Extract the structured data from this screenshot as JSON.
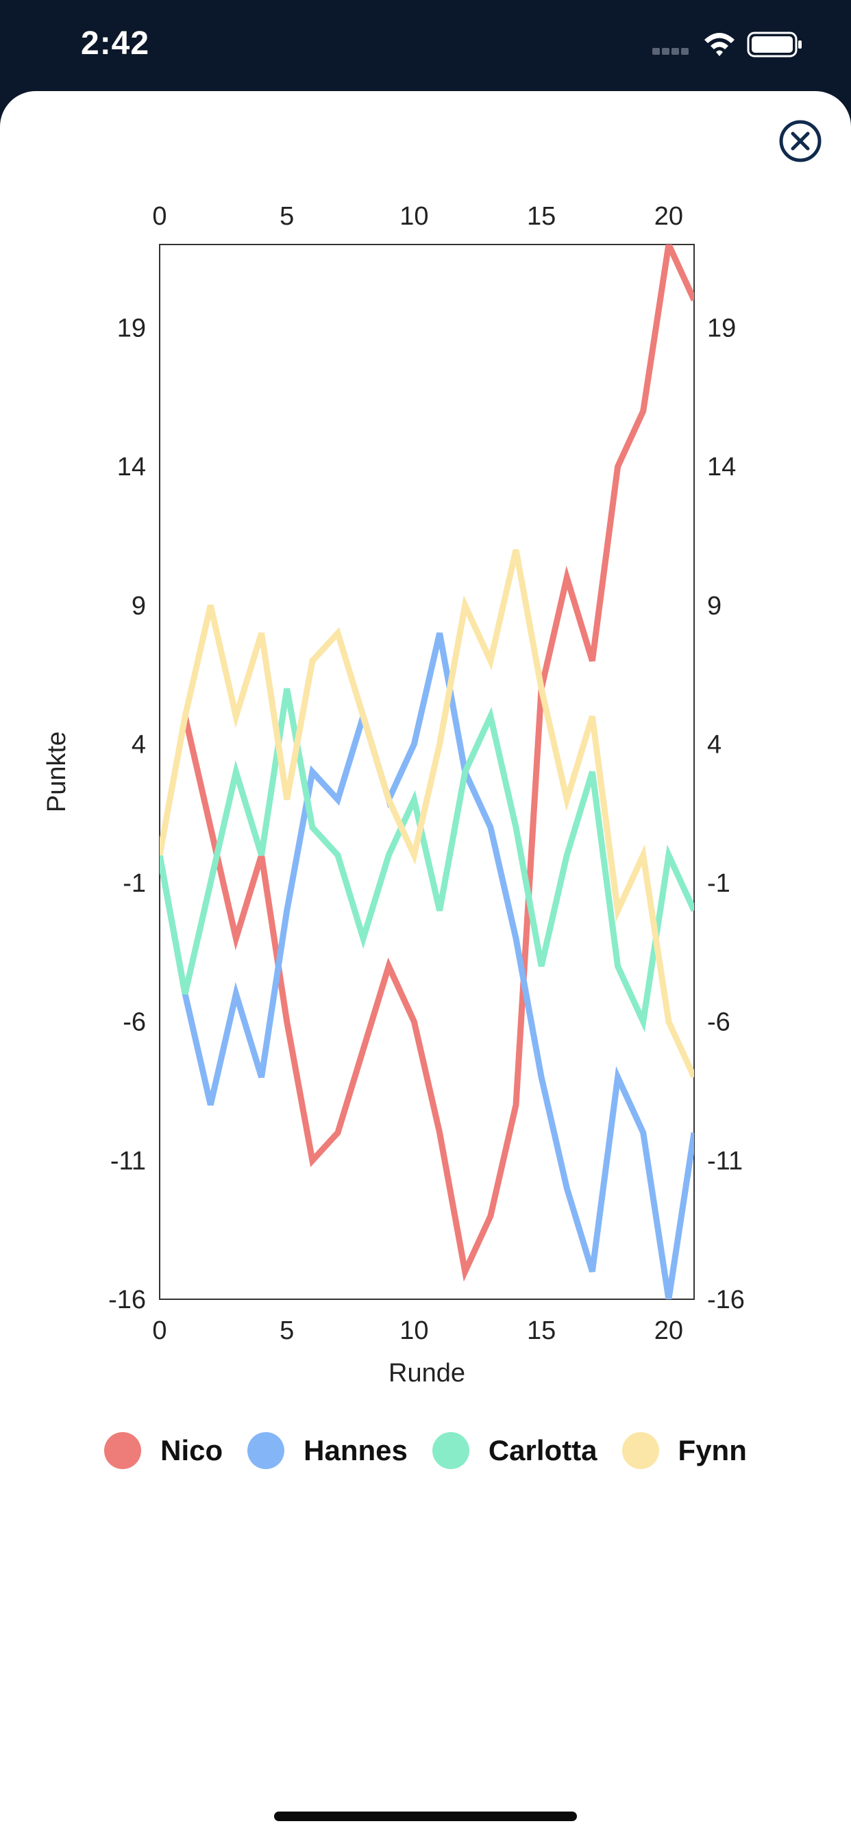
{
  "status_bar": {
    "time": "2:42"
  },
  "close_icon": "close-circle-x-icon",
  "chart_data": {
    "type": "line",
    "title": "",
    "xlabel": "Runde",
    "ylabel": "Punkte",
    "xlim": [
      0,
      21
    ],
    "ylim": [
      -16,
      22
    ],
    "x_ticks": [
      0,
      5,
      10,
      15,
      20
    ],
    "y_ticks": [
      -16,
      -11,
      -6,
      -1,
      4,
      9,
      14,
      19
    ],
    "legend_position": "bottom",
    "grid": false,
    "series": [
      {
        "name": "Nico",
        "color": "#ee7c78",
        "points": [
          [
            1,
            5
          ],
          [
            2,
            1
          ],
          [
            3,
            -3
          ],
          [
            4,
            0
          ],
          [
            5,
            -6
          ],
          [
            6,
            -11
          ],
          [
            7,
            -10
          ],
          [
            8,
            -7
          ],
          [
            9,
            -4
          ],
          [
            10,
            -6
          ],
          [
            11,
            -10
          ],
          [
            12,
            -15
          ],
          [
            13,
            -13
          ],
          [
            14,
            -9
          ],
          [
            15,
            6
          ],
          [
            16,
            10
          ],
          [
            17,
            7
          ],
          [
            18,
            14
          ],
          [
            19,
            16
          ],
          [
            20,
            22
          ],
          [
            21,
            20
          ]
        ]
      },
      {
        "name": "Hannes",
        "color": "#84b6f7",
        "points": [
          [
            0,
            0
          ],
          [
            1,
            -5
          ],
          [
            2,
            -9
          ],
          [
            3,
            -5
          ],
          [
            4,
            -8
          ],
          [
            5,
            -2
          ],
          [
            6,
            3
          ],
          [
            7,
            2
          ],
          [
            8,
            5
          ],
          [
            9,
            2
          ],
          [
            10,
            4
          ],
          [
            11,
            8
          ],
          [
            12,
            3
          ],
          [
            13,
            1
          ],
          [
            14,
            -3
          ],
          [
            15,
            -8
          ],
          [
            16,
            -12
          ],
          [
            17,
            -15
          ],
          [
            18,
            -8
          ],
          [
            19,
            -10
          ],
          [
            20,
            -16
          ],
          [
            21,
            -10
          ]
        ]
      },
      {
        "name": "Carlotta",
        "color": "#88ecc8",
        "points": [
          [
            0,
            0
          ],
          [
            1,
            -5
          ],
          [
            2,
            -1
          ],
          [
            3,
            3
          ],
          [
            4,
            0
          ],
          [
            5,
            6
          ],
          [
            6,
            1
          ],
          [
            7,
            0
          ],
          [
            8,
            -3
          ],
          [
            9,
            0
          ],
          [
            10,
            2
          ],
          [
            11,
            -2
          ],
          [
            12,
            3
          ],
          [
            13,
            5
          ],
          [
            14,
            1
          ],
          [
            15,
            -4
          ],
          [
            16,
            0
          ],
          [
            17,
            3
          ],
          [
            18,
            -4
          ],
          [
            19,
            -6
          ],
          [
            20,
            0
          ],
          [
            21,
            -2
          ]
        ]
      },
      {
        "name": "Fynn",
        "color": "#fbe6a7",
        "points": [
          [
            0,
            0
          ],
          [
            1,
            5
          ],
          [
            2,
            9
          ],
          [
            3,
            5
          ],
          [
            4,
            8
          ],
          [
            5,
            2
          ],
          [
            6,
            7
          ],
          [
            7,
            8
          ],
          [
            8,
            5
          ],
          [
            9,
            2
          ],
          [
            10,
            0
          ],
          [
            11,
            4
          ],
          [
            12,
            9
          ],
          [
            13,
            7
          ],
          [
            14,
            11
          ],
          [
            15,
            6
          ],
          [
            16,
            2
          ],
          [
            17,
            5
          ],
          [
            18,
            -2
          ],
          [
            19,
            0
          ],
          [
            20,
            -6
          ],
          [
            21,
            -8
          ]
        ]
      }
    ]
  }
}
